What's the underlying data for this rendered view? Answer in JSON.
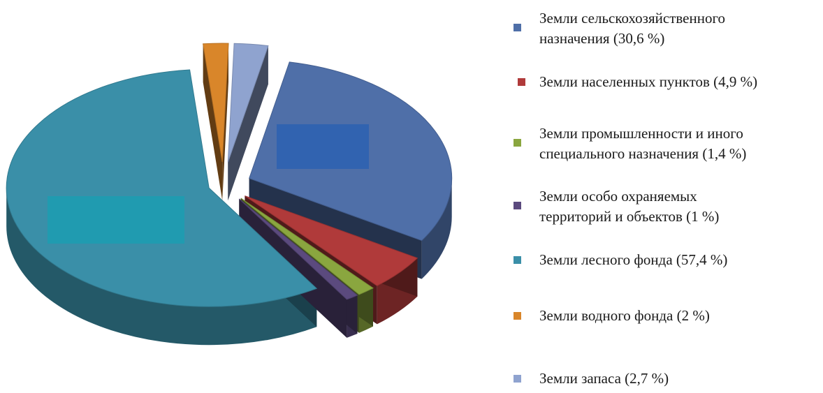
{
  "chart_data": {
    "type": "pie",
    "style": "3d-exploded",
    "slices": [
      {
        "label": "Земли сельскохозяйственного\nназначения (30,6 %)",
        "value": 30.6,
        "color": "#4f6fa8"
      },
      {
        "label": "Земли населенных пунктов (4,9 %)",
        "value": 4.9,
        "color": "#b03a3a"
      },
      {
        "label": "Земли промышленности и иного\nспециального назначения (1,4 %)",
        "value": 1.4,
        "color": "#8aa63f"
      },
      {
        "label": "Земли особо охраняемых\nтерриторий и объектов (1 %)",
        "value": 1.0,
        "color": "#5b4a7e"
      },
      {
        "label": "Земли лесного фонда (57,4 %)",
        "value": 57.4,
        "color": "#3a8fa8"
      },
      {
        "label": "Земли водного фонда (2 %)",
        "value": 2.0,
        "color": "#d9862a"
      },
      {
        "label": "Земли запаса (2,7 %)",
        "value": 2.7,
        "color": "#8fa3cf"
      }
    ],
    "legend_position": "right",
    "label_box_colors": {
      "agricultural": "#2f62b0",
      "forest": "#1f9cb0"
    }
  }
}
